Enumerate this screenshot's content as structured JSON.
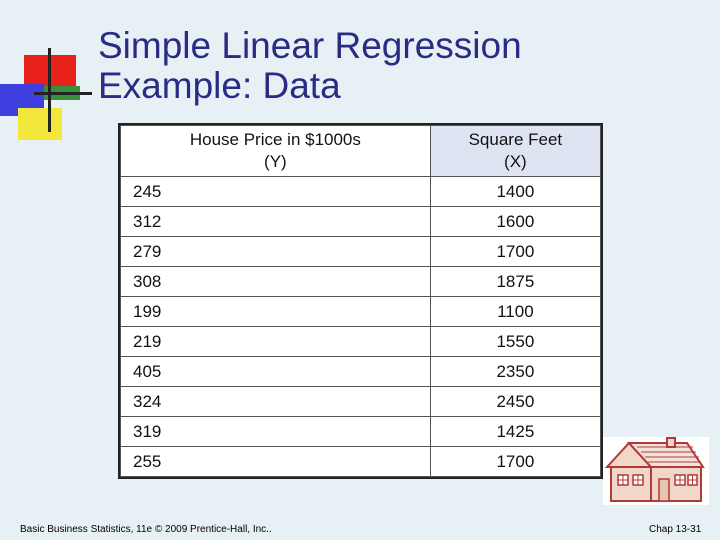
{
  "title": {
    "line1": "Simple Linear Regression",
    "line2": "Example:  Data"
  },
  "table": {
    "headers": [
      {
        "line1": "House Price in $1000s",
        "line2": "(Y)"
      },
      {
        "line1": "Square Feet",
        "line2": "(X)"
      }
    ],
    "rows": [
      {
        "y": "245",
        "x": "1400"
      },
      {
        "y": "312",
        "x": "1600"
      },
      {
        "y": "279",
        "x": "1700"
      },
      {
        "y": "308",
        "x": "1875"
      },
      {
        "y": "199",
        "x": "1100"
      },
      {
        "y": "219",
        "x": "1550"
      },
      {
        "y": "405",
        "x": "2350"
      },
      {
        "y": "324",
        "x": "2450"
      },
      {
        "y": "319",
        "x": "1425"
      },
      {
        "y": "255",
        "x": "1700"
      }
    ]
  },
  "footer": {
    "left": "Basic Business Statistics, 11e © 2009 Prentice-Hall, Inc..",
    "right": "Chap 13-31"
  },
  "colors": {
    "background": "#e7f1f5",
    "title": "#2b2b86",
    "logo_red": "#e8201a",
    "logo_blue": "#3f3fe0",
    "logo_yellow": "#f2e73a",
    "logo_green": "#3a8f3a",
    "house_wall": "#f1d7c8",
    "house_outline": "#b03a3a"
  },
  "icons": {
    "logo": "corner-squares-logo",
    "house": "house-clipart-icon"
  }
}
